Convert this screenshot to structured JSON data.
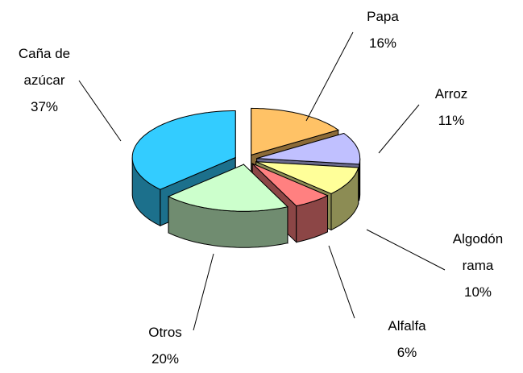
{
  "chart_data": {
    "type": "pie",
    "categories": [
      "Papa",
      "Arroz",
      "Algodón rama",
      "Alfalfa",
      "Otros",
      "Caña de azúcar"
    ],
    "values": [
      16,
      11,
      10,
      6,
      20,
      37
    ],
    "value_labels": [
      "16%",
      "11%",
      "10%",
      "6%",
      "20%",
      "37%"
    ],
    "colors": [
      "#ffc266",
      "#c0c0ff",
      "#ffff99",
      "#ff8080",
      "#ccffcc",
      "#33ccff"
    ]
  }
}
